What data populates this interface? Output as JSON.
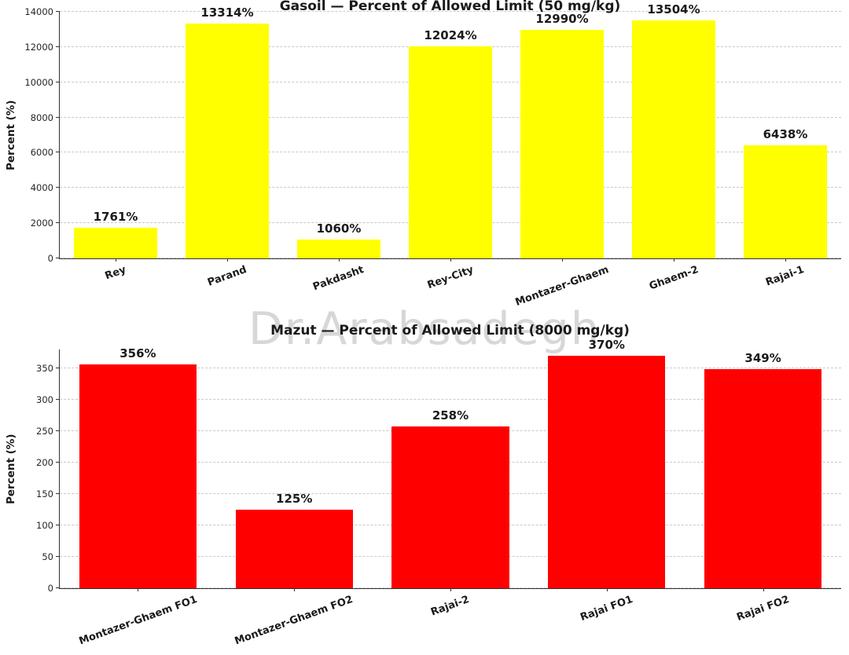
{
  "watermark": "Dr.Arabsadegh",
  "chart_data": [
    {
      "type": "bar",
      "title": "Gasoil — Percent of Allowed Limit (50 mg/kg)",
      "ylabel": "Percent (%)",
      "xlabel": "",
      "categories": [
        "Rey",
        "Parand",
        "Pakdasht",
        "Rey-City",
        "Montazer-Ghaem",
        "Ghaem-2",
        "Rajai-1"
      ],
      "values": [
        1761,
        13314,
        1060,
        12024,
        12990,
        13504,
        6438
      ],
      "value_labels": [
        "1761%",
        "13314%",
        "1060%",
        "12024%",
        "12990%",
        "13504%",
        "6438%"
      ],
      "bar_color": "#ffff00",
      "ylim": [
        0,
        14000
      ],
      "yticks": [
        0,
        2000,
        4000,
        6000,
        8000,
        10000,
        12000,
        14000
      ],
      "grid": true,
      "legend_position": "none"
    },
    {
      "type": "bar",
      "title": "Mazut — Percent of Allowed Limit (8000 mg/kg)",
      "ylabel": "Percent (%)",
      "xlabel": "",
      "categories": [
        "Montazer-Ghaem FO1",
        "Montazer-Ghaem FO2",
        "Rajai-2",
        "Rajai FO1",
        "Rajai FO2"
      ],
      "values": [
        356,
        125,
        258,
        370,
        349
      ],
      "value_labels": [
        "356%",
        "125%",
        "258%",
        "370%",
        "349%"
      ],
      "bar_color": "#ff0000",
      "ylim": [
        0,
        380
      ],
      "yticks": [
        0,
        50,
        100,
        150,
        200,
        250,
        300,
        350
      ],
      "grid": true,
      "legend_position": "none"
    }
  ]
}
